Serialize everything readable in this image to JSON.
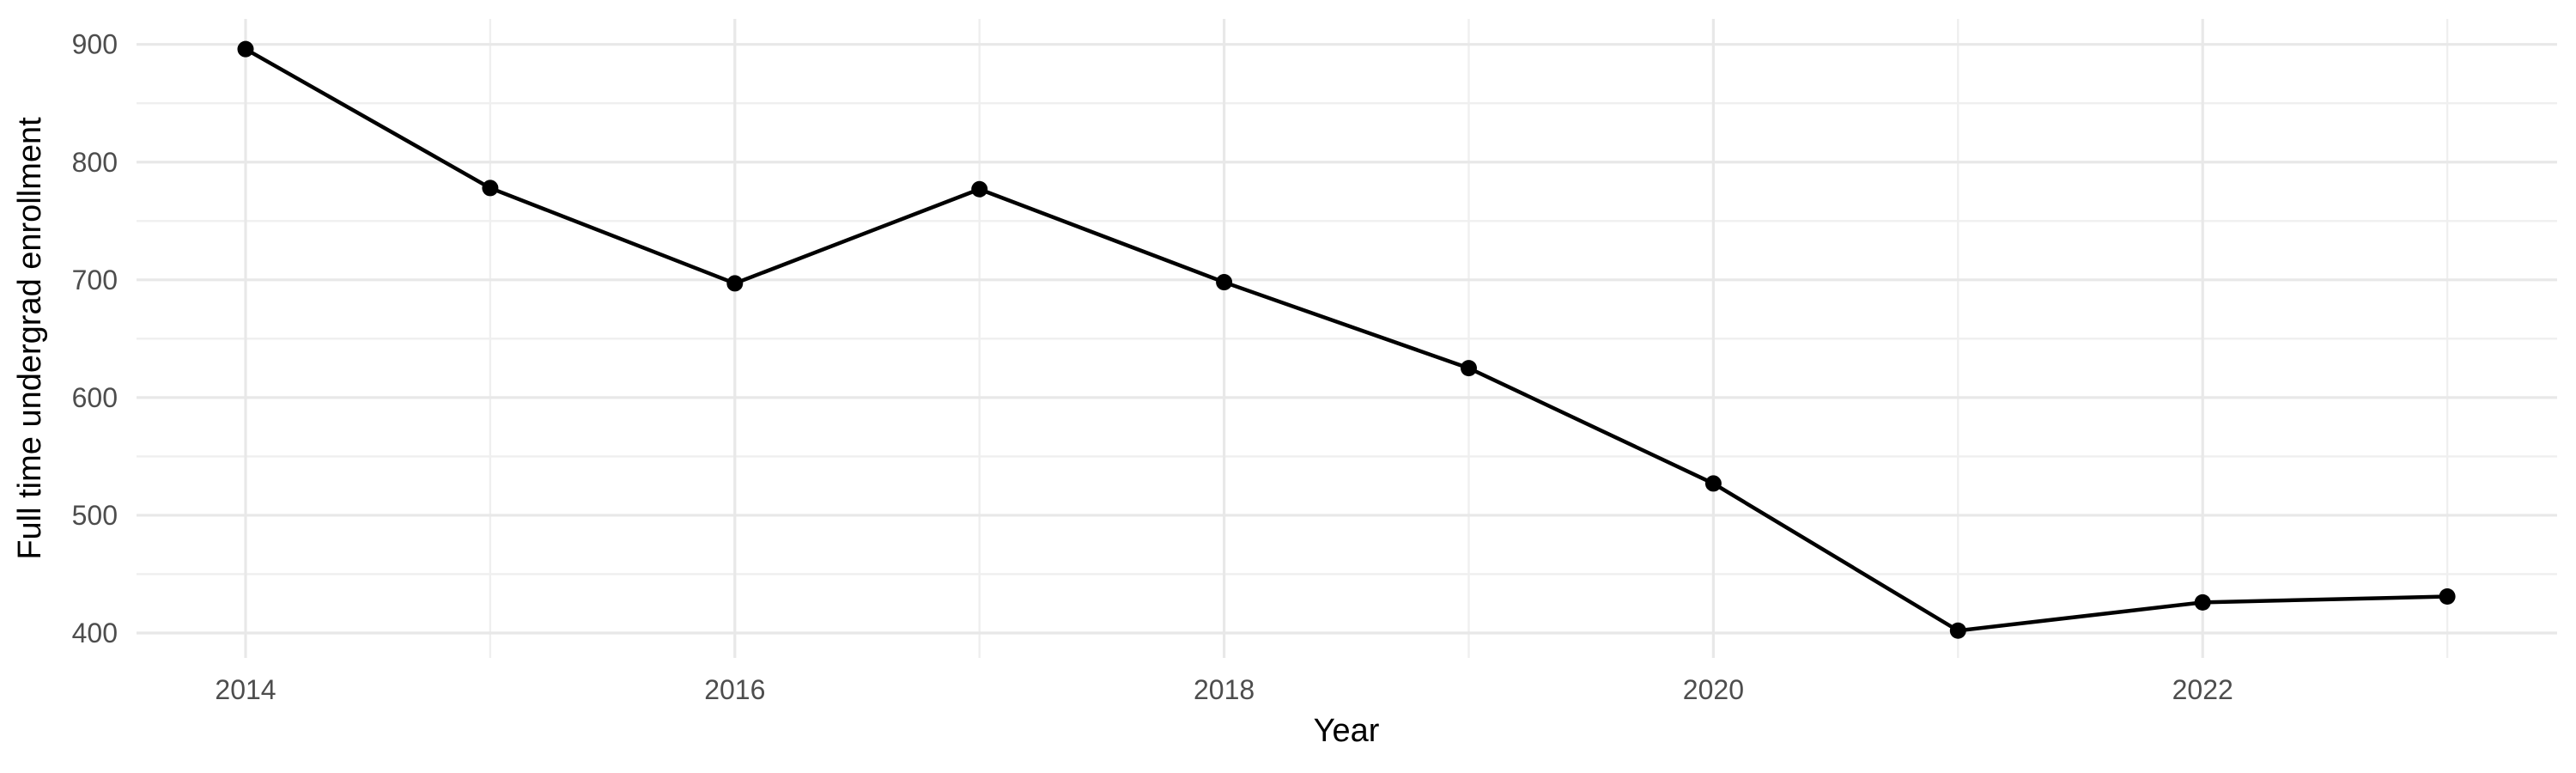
{
  "chart_data": {
    "type": "line",
    "title": "",
    "xlabel": "Year",
    "ylabel": "Full time undergrad enrollment",
    "x": [
      2014,
      2015,
      2016,
      2017,
      2018,
      2019,
      2020,
      2021,
      2022,
      2023
    ],
    "series": [
      {
        "name": "Full time undergrad enrollment",
        "values": [
          896,
          778,
          697,
          777,
          698,
          625,
          527,
          402,
          426,
          431
        ]
      }
    ],
    "x_ticks": [
      2014,
      2016,
      2018,
      2020,
      2022
    ],
    "y_ticks": [
      400,
      500,
      600,
      700,
      800,
      900
    ],
    "xlim": [
      2013.55,
      2023.45
    ],
    "ylim": [
      378,
      922
    ],
    "grid": "on",
    "minor_grid": "on",
    "legend": "none",
    "marker": "filled-circle"
  },
  "colors": {
    "background": "#ffffff",
    "grid_major": "#e8e8e8",
    "grid_minor": "#efefef",
    "tick_label": "#4d4d4d",
    "axis_title": "#000000",
    "series_line": "#000000",
    "series_point": "#000000"
  }
}
